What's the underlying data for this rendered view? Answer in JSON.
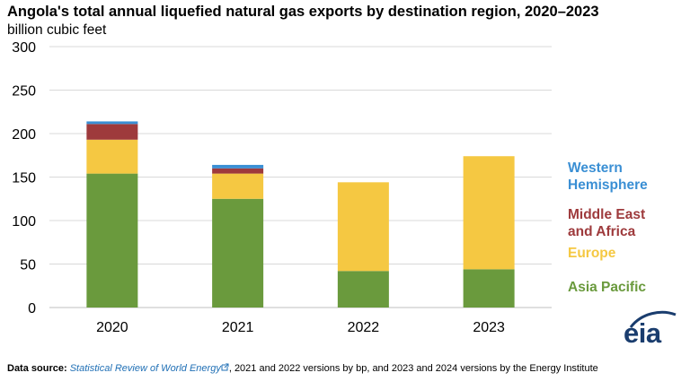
{
  "header": {
    "title": "Angola's total annual liquefied natural gas exports by destination region, 2020–2023",
    "subtitle": "billion cubic feet"
  },
  "colors": {
    "asia_pacific": "#6a9a3d",
    "europe": "#f5c842",
    "middle_east_africa": "#9e3a3c",
    "western_hemisphere": "#3a8fd4",
    "gridline": "#d9d9d9",
    "axis": "#bfbfbf",
    "eia_logo": "#1a3d6e"
  },
  "chart_data": {
    "type": "bar",
    "stacked": true,
    "categories": [
      "2020",
      "2021",
      "2022",
      "2023"
    ],
    "series": [
      {
        "name": "Asia Pacific",
        "color": "#6a9a3d",
        "values": [
          154,
          125,
          42,
          44
        ]
      },
      {
        "name": "Europe",
        "color": "#f5c842",
        "values": [
          39,
          29,
          102,
          130
        ]
      },
      {
        "name": "Middle East and Africa",
        "color": "#9e3a3c",
        "values": [
          18,
          6,
          0,
          0
        ]
      },
      {
        "name": "Western Hemisphere",
        "color": "#3a8fd4",
        "values": [
          3,
          4,
          0,
          0
        ]
      }
    ],
    "ylim": [
      0,
      300
    ],
    "yticks": [
      0,
      50,
      100,
      150,
      200,
      250,
      300
    ],
    "grid": true,
    "legend_placement": "right"
  },
  "legend": {
    "western_hemisphere": [
      "Western",
      "Hemisphere"
    ],
    "middle_east_africa": [
      "Middle East",
      "and Africa"
    ],
    "europe": [
      "Europe"
    ],
    "asia_pacific": [
      "Asia Pacific"
    ]
  },
  "footer": {
    "label": "Data source:",
    "source_link": "Statistical Review of World Energy",
    "external_link_icon": "external-link-icon",
    "rest": ", 2021 and 2022 versions by bp, and 2023 and 2024 versions by the Energy Institute"
  },
  "logo": {
    "text": "eia"
  }
}
